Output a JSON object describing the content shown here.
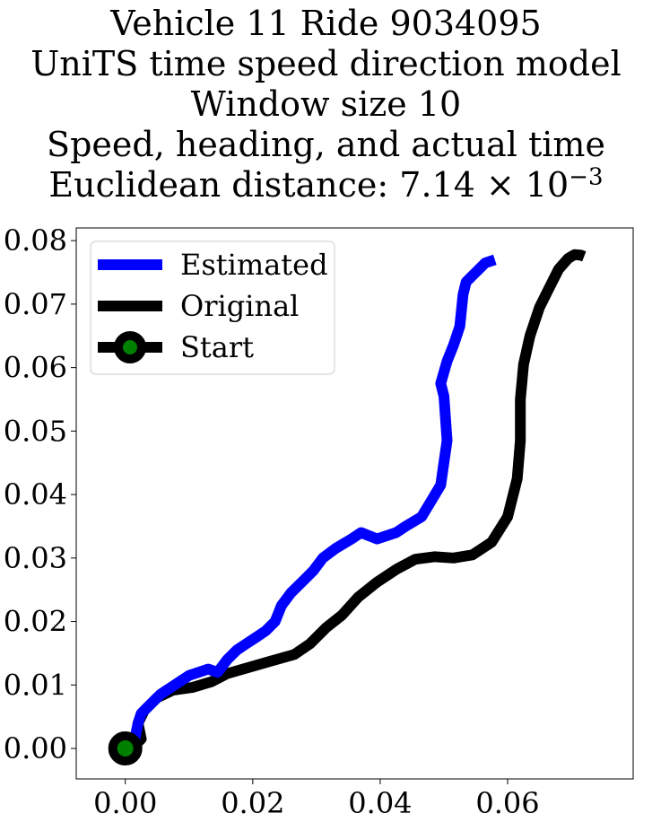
{
  "title_lines": [
    "Vehicle 11 Ride 9034095",
    "UniTS time speed direction model",
    "Window size 10",
    "Speed, heading, and actual time"
  ],
  "title_distance_prefix": "Euclidean distance: 7.14 × 10",
  "title_distance_exponent": "−3",
  "chart_data": {
    "type": "line",
    "title": "Vehicle 11 Ride 9034095 / UniTS time speed direction model / Window size 10 / Speed, heading, and actual time / Euclidean distance: 7.14×10^-3",
    "xlabel": "",
    "ylabel": "",
    "xlim": [
      -0.0077,
      0.0797
    ],
    "ylim": [
      -0.0048,
      0.082
    ],
    "x_ticks": [
      0.0,
      0.02,
      0.04,
      0.06
    ],
    "x_tick_labels": [
      "0.00",
      "0.02",
      "0.04",
      "0.06"
    ],
    "y_ticks": [
      0.0,
      0.01,
      0.02,
      0.03,
      0.04,
      0.05,
      0.06,
      0.07,
      0.08
    ],
    "y_tick_labels": [
      "0.00",
      "0.01",
      "0.02",
      "0.03",
      "0.04",
      "0.05",
      "0.06",
      "0.07",
      "0.08"
    ],
    "grid": false,
    "legend_position": "upper-left",
    "series": [
      {
        "name": "Estimated",
        "color": "#0000ff",
        "x": [
          0.0,
          0.0015,
          0.002,
          0.0025,
          0.004,
          0.0055,
          0.007,
          0.0085,
          0.01,
          0.0115,
          0.013,
          0.0145,
          0.016,
          0.0175,
          0.019,
          0.0205,
          0.022,
          0.0235,
          0.0245,
          0.026,
          0.028,
          0.0295,
          0.031,
          0.033,
          0.0355,
          0.037,
          0.0395,
          0.0425,
          0.044,
          0.0465,
          0.048,
          0.0495,
          0.0505,
          0.05,
          0.0495,
          0.0505,
          0.0515,
          0.0525,
          0.053,
          0.0535,
          0.055,
          0.0565,
          0.058
        ],
        "y": [
          0.0,
          0.0015,
          0.004,
          0.0055,
          0.007,
          0.0085,
          0.0095,
          0.0105,
          0.0115,
          0.012,
          0.0125,
          0.012,
          0.014,
          0.0155,
          0.0165,
          0.0175,
          0.0185,
          0.02,
          0.0225,
          0.0245,
          0.0265,
          0.028,
          0.03,
          0.0315,
          0.033,
          0.034,
          0.033,
          0.034,
          0.035,
          0.0365,
          0.039,
          0.0415,
          0.0485,
          0.0555,
          0.0575,
          0.061,
          0.0635,
          0.0665,
          0.0715,
          0.0735,
          0.075,
          0.0765,
          0.077
        ]
      },
      {
        "name": "Original",
        "color": "#000000",
        "x": [
          0.0,
          0.0015,
          0.0025,
          0.002,
          0.003,
          0.005,
          0.0075,
          0.0105,
          0.0135,
          0.016,
          0.0195,
          0.023,
          0.0265,
          0.029,
          0.0315,
          0.034,
          0.0365,
          0.0395,
          0.0425,
          0.0455,
          0.0485,
          0.0515,
          0.0545,
          0.0575,
          0.06,
          0.0615,
          0.062,
          0.062,
          0.0625,
          0.0635,
          0.065,
          0.0665,
          0.068,
          0.0695,
          0.0705,
          0.0715,
          0.072
        ],
        "y": [
          0.0,
          0.0005,
          0.0015,
          0.004,
          0.006,
          0.008,
          0.0092,
          0.0096,
          0.0105,
          0.0118,
          0.0128,
          0.0138,
          0.0148,
          0.0165,
          0.019,
          0.021,
          0.0238,
          0.0262,
          0.0282,
          0.0298,
          0.0302,
          0.03,
          0.0305,
          0.0325,
          0.0365,
          0.0425,
          0.0485,
          0.055,
          0.0605,
          0.065,
          0.0695,
          0.0725,
          0.0755,
          0.0772,
          0.0778,
          0.0777,
          0.0775
        ]
      }
    ],
    "start_marker": {
      "name": "Start",
      "x": 0.0,
      "y": 0.0,
      "edge_color": "#000000",
      "face_color": "#008000"
    }
  }
}
